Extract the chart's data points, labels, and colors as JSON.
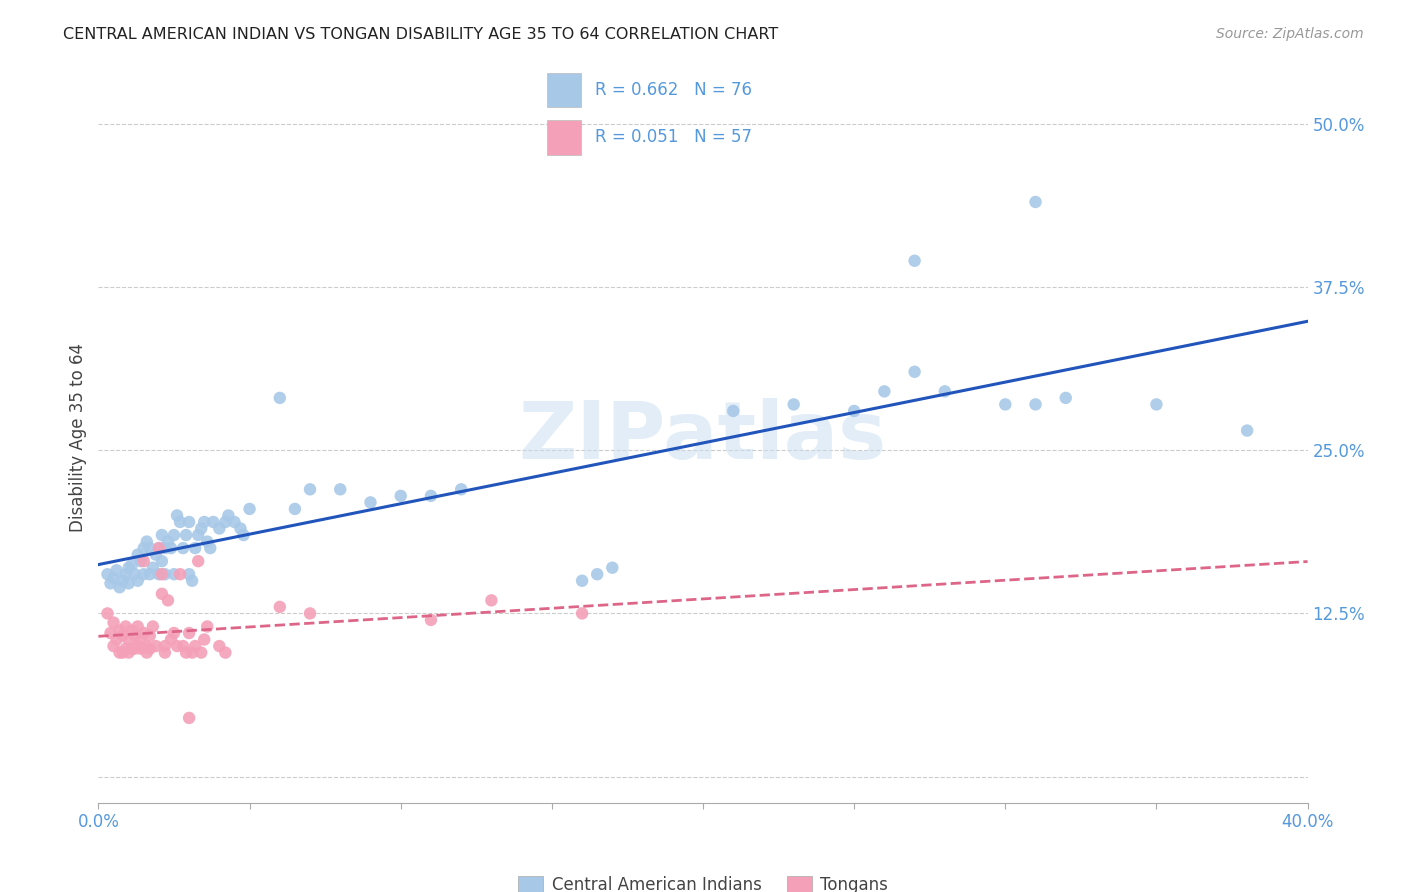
{
  "title": "CENTRAL AMERICAN INDIAN VS TONGAN DISABILITY AGE 35 TO 64 CORRELATION CHART",
  "source": "Source: ZipAtlas.com",
  "ylabel": "Disability Age 35 to 64",
  "xlim": [
    0.0,
    0.4
  ],
  "ylim": [
    -0.02,
    0.54
  ],
  "yticks": [
    0.0,
    0.125,
    0.25,
    0.375,
    0.5
  ],
  "ytick_labels": [
    "",
    "12.5%",
    "25.0%",
    "37.5%",
    "50.0%"
  ],
  "blue_color": "#a8c8e8",
  "pink_color": "#f4a0b8",
  "blue_line_color": "#2255bb",
  "pink_line_color": "#dd6688",
  "background_color": "#ffffff",
  "grid_color": "#cccccc",
  "watermark_color": "#c8ddf0",
  "blue_scatter": [
    [
      0.003,
      0.155
    ],
    [
      0.004,
      0.148
    ],
    [
      0.005,
      0.152
    ],
    [
      0.006,
      0.158
    ],
    [
      0.007,
      0.145
    ],
    [
      0.008,
      0.15
    ],
    [
      0.009,
      0.155
    ],
    [
      0.01,
      0.148
    ],
    [
      0.01,
      0.16
    ],
    [
      0.011,
      0.162
    ],
    [
      0.012,
      0.155
    ],
    [
      0.013,
      0.15
    ],
    [
      0.013,
      0.17
    ],
    [
      0.014,
      0.165
    ],
    [
      0.015,
      0.175
    ],
    [
      0.015,
      0.155
    ],
    [
      0.016,
      0.18
    ],
    [
      0.017,
      0.175
    ],
    [
      0.017,
      0.155
    ],
    [
      0.018,
      0.16
    ],
    [
      0.019,
      0.17
    ],
    [
      0.02,
      0.175
    ],
    [
      0.02,
      0.155
    ],
    [
      0.021,
      0.185
    ],
    [
      0.021,
      0.165
    ],
    [
      0.022,
      0.175
    ],
    [
      0.022,
      0.155
    ],
    [
      0.023,
      0.18
    ],
    [
      0.024,
      0.175
    ],
    [
      0.025,
      0.185
    ],
    [
      0.025,
      0.155
    ],
    [
      0.026,
      0.2
    ],
    [
      0.027,
      0.195
    ],
    [
      0.028,
      0.175
    ],
    [
      0.029,
      0.185
    ],
    [
      0.03,
      0.195
    ],
    [
      0.03,
      0.155
    ],
    [
      0.031,
      0.15
    ],
    [
      0.032,
      0.175
    ],
    [
      0.033,
      0.185
    ],
    [
      0.034,
      0.19
    ],
    [
      0.035,
      0.195
    ],
    [
      0.036,
      0.18
    ],
    [
      0.037,
      0.175
    ],
    [
      0.038,
      0.195
    ],
    [
      0.04,
      0.19
    ],
    [
      0.042,
      0.195
    ],
    [
      0.043,
      0.2
    ],
    [
      0.045,
      0.195
    ],
    [
      0.047,
      0.19
    ],
    [
      0.048,
      0.185
    ],
    [
      0.05,
      0.205
    ],
    [
      0.06,
      0.29
    ],
    [
      0.065,
      0.205
    ],
    [
      0.07,
      0.22
    ],
    [
      0.08,
      0.22
    ],
    [
      0.09,
      0.21
    ],
    [
      0.1,
      0.215
    ],
    [
      0.11,
      0.215
    ],
    [
      0.12,
      0.22
    ],
    [
      0.16,
      0.15
    ],
    [
      0.165,
      0.155
    ],
    [
      0.17,
      0.16
    ],
    [
      0.21,
      0.28
    ],
    [
      0.23,
      0.285
    ],
    [
      0.25,
      0.28
    ],
    [
      0.26,
      0.295
    ],
    [
      0.27,
      0.31
    ],
    [
      0.28,
      0.295
    ],
    [
      0.3,
      0.285
    ],
    [
      0.31,
      0.285
    ],
    [
      0.32,
      0.29
    ],
    [
      0.31,
      0.44
    ],
    [
      0.27,
      0.395
    ],
    [
      0.35,
      0.285
    ],
    [
      0.38,
      0.265
    ]
  ],
  "pink_scatter": [
    [
      0.003,
      0.125
    ],
    [
      0.004,
      0.11
    ],
    [
      0.005,
      0.118
    ],
    [
      0.005,
      0.1
    ],
    [
      0.006,
      0.105
    ],
    [
      0.007,
      0.112
    ],
    [
      0.007,
      0.095
    ],
    [
      0.008,
      0.108
    ],
    [
      0.008,
      0.095
    ],
    [
      0.009,
      0.115
    ],
    [
      0.009,
      0.098
    ],
    [
      0.01,
      0.105
    ],
    [
      0.01,
      0.095
    ],
    [
      0.011,
      0.112
    ],
    [
      0.011,
      0.098
    ],
    [
      0.012,
      0.108
    ],
    [
      0.012,
      0.098
    ],
    [
      0.013,
      0.115
    ],
    [
      0.013,
      0.1
    ],
    [
      0.014,
      0.105
    ],
    [
      0.014,
      0.098
    ],
    [
      0.015,
      0.11
    ],
    [
      0.015,
      0.165
    ],
    [
      0.016,
      0.1
    ],
    [
      0.016,
      0.095
    ],
    [
      0.017,
      0.108
    ],
    [
      0.017,
      0.098
    ],
    [
      0.018,
      0.115
    ],
    [
      0.019,
      0.1
    ],
    [
      0.02,
      0.175
    ],
    [
      0.021,
      0.14
    ],
    [
      0.021,
      0.155
    ],
    [
      0.022,
      0.1
    ],
    [
      0.022,
      0.095
    ],
    [
      0.023,
      0.135
    ],
    [
      0.024,
      0.105
    ],
    [
      0.025,
      0.11
    ],
    [
      0.026,
      0.1
    ],
    [
      0.027,
      0.155
    ],
    [
      0.028,
      0.1
    ],
    [
      0.029,
      0.095
    ],
    [
      0.03,
      0.11
    ],
    [
      0.031,
      0.095
    ],
    [
      0.032,
      0.1
    ],
    [
      0.033,
      0.165
    ],
    [
      0.034,
      0.095
    ],
    [
      0.035,
      0.105
    ],
    [
      0.036,
      0.115
    ],
    [
      0.04,
      0.1
    ],
    [
      0.042,
      0.095
    ],
    [
      0.06,
      0.13
    ],
    [
      0.07,
      0.125
    ],
    [
      0.11,
      0.12
    ],
    [
      0.13,
      0.135
    ],
    [
      0.16,
      0.125
    ],
    [
      0.03,
      0.045
    ]
  ]
}
